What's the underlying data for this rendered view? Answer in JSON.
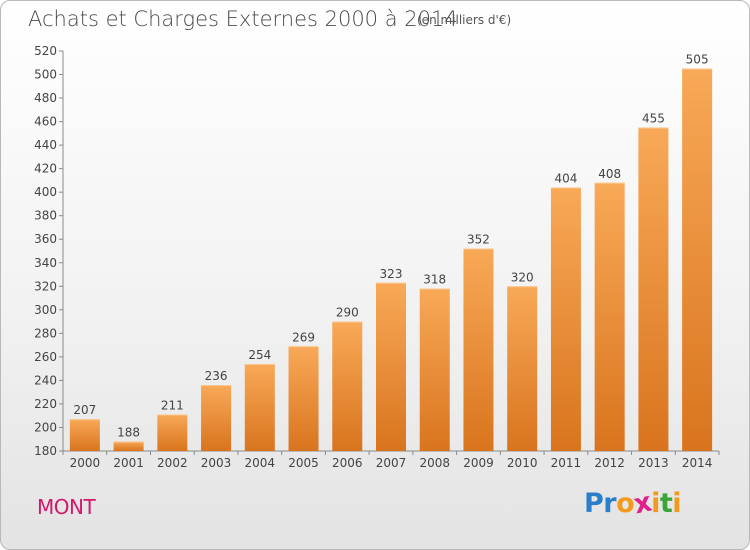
{
  "title": "Achats et Charges Externes 2000 à 2014",
  "subtitle": "(en milliers d'€)",
  "location_label": "MONT",
  "logo": {
    "letters": [
      "P",
      "r",
      "o",
      "x",
      "i",
      "t",
      "i"
    ],
    "colors": [
      "#2a7fc8",
      "#2a7fc8",
      "#f39a1c",
      "#e0218a",
      "#f39a1c",
      "#3aa63a",
      "#f39a1c"
    ]
  },
  "colors": {
    "bar_light": "#f8a957",
    "bar_dark": "#d9741e",
    "title": "#4a4a4a",
    "location": "#d4186c"
  },
  "chart_data": {
    "type": "bar",
    "title": "Achats et Charges Externes 2000 à 2014",
    "subtitle": "(en milliers d'€)",
    "categories": [
      "2000",
      "2001",
      "2002",
      "2003",
      "2004",
      "2005",
      "2006",
      "2007",
      "2008",
      "2009",
      "2010",
      "2011",
      "2012",
      "2013",
      "2014"
    ],
    "values": [
      207,
      188,
      211,
      236,
      254,
      269,
      290,
      323,
      318,
      352,
      320,
      404,
      408,
      455,
      505
    ],
    "ylim": [
      180,
      520
    ],
    "yticks": [
      180,
      200,
      220,
      240,
      260,
      280,
      300,
      320,
      340,
      360,
      380,
      400,
      420,
      440,
      460,
      480,
      500,
      520
    ],
    "grid": false,
    "xlabel": "",
    "ylabel": ""
  }
}
